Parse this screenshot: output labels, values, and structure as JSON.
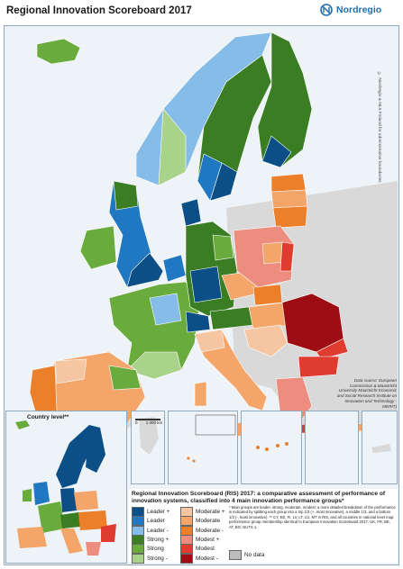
{
  "title": "Regional Innovation Scoreboard 2017",
  "logo": {
    "name": "Nordregio"
  },
  "copyright": "© Nordregio & NLS Finland for administrative boundaries",
  "source": "Data source: European Commission & Maastricht University Maastricht Economic and Social Research Institute on Innovation and Technology - MERIT)",
  "inset_label": "Country level**",
  "scale": {
    "zero": "0",
    "km": "1 000 km",
    "small_zero": "0",
    "small_km": "1 000 km"
  },
  "legend": {
    "title": "Regional Innovation Scoreboard (RIS) 2017: a comparative assessment of performance of innovation systems, classified into 4 main innovation performance groups*",
    "footnote": "* Main groups are leader, strong, moderate, modest; a more detailed breakdown of the performance is indicated by splitting each group into a top 1/3 (+, most innovative), a middle 1/3, and a bottom 1/3 (-, least innovative). ** CY, EE, FI, LV, LT, LU, MT in RIS, and all countries in national level map: performance group membership identical to European Innovation Scoreboard 2017. UK, FR, BE, AT, BG: NUTS 1.",
    "items": [
      {
        "label": "Leader +",
        "color": "#0b4f86"
      },
      {
        "label": "Leader",
        "color": "#1f78c1"
      },
      {
        "label": "Leader -",
        "color": "#86bde8"
      },
      {
        "label": "Strong +",
        "color": "#3a7d23"
      },
      {
        "label": "Strong",
        "color": "#6aab3e"
      },
      {
        "label": "Strong -",
        "color": "#a9d28a"
      },
      {
        "label": "Moderate +",
        "color": "#f6c6a2"
      },
      {
        "label": "Moderate",
        "color": "#f4a56a"
      },
      {
        "label": "Moderate -",
        "color": "#ec7f2a"
      },
      {
        "label": "Modest +",
        "color": "#ec8d7f"
      },
      {
        "label": "Modest",
        "color": "#df3b2e"
      },
      {
        "label": "Modest -",
        "color": "#9e0d14"
      }
    ],
    "no_data": {
      "label": "No data",
      "color": "#bdbdbd"
    }
  },
  "colors": {
    "sea": "#eef3f7",
    "non_eu": "#d9d9d9",
    "border": "#ffffff",
    "frame": "#8fa8bd",
    "logo_blue": "#1f6fb0"
  }
}
